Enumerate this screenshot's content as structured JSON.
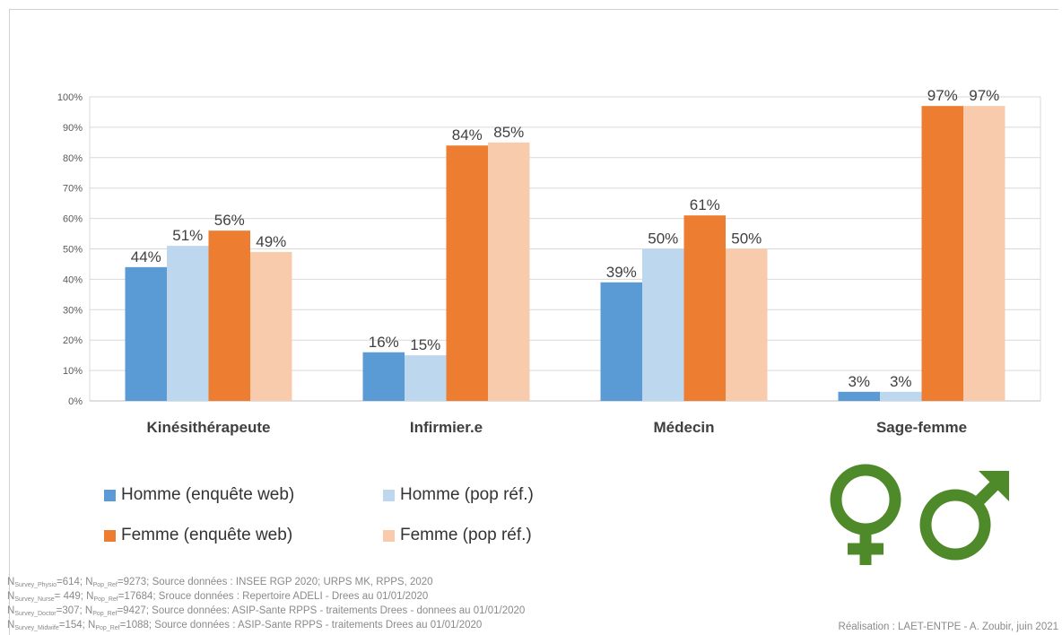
{
  "chart_data": {
    "type": "bar",
    "categories": [
      "Kinésithérapeute",
      "Infirmier.e",
      "Médecin",
      "Sage-femme"
    ],
    "series": [
      {
        "name": "Homme (enquête web)",
        "color": "#5B9BD5",
        "values": [
          44,
          16,
          39,
          3
        ],
        "labels": [
          "44%",
          "16%",
          "39%",
          "3%"
        ]
      },
      {
        "name": "Homme (pop réf.)",
        "color": "#BDD7EE",
        "values": [
          51,
          15,
          50,
          3
        ],
        "labels": [
          "51%",
          "15%",
          "50%",
          "3%"
        ]
      },
      {
        "name": "Femme (enquête web)",
        "color": "#ED7D31",
        "values": [
          56,
          84,
          61,
          97
        ],
        "labels": [
          "56%",
          "84%",
          "61%",
          "97%"
        ]
      },
      {
        "name": "Femme (pop réf.)",
        "color": "#F8CBAD",
        "values": [
          49,
          85,
          50,
          97
        ],
        "labels": [
          "49%",
          "85%",
          "50%",
          "97%"
        ]
      }
    ],
    "ylim": [
      0,
      100
    ],
    "yticks": [
      "0%",
      "10%",
      "20%",
      "30%",
      "40%",
      "50%",
      "60%",
      "70%",
      "80%",
      "90%",
      "100%"
    ],
    "grid": true,
    "legend_position": "bottom-left"
  },
  "symbols": {
    "female": "female-symbol",
    "male": "male-symbol",
    "color": "#4E8A2A"
  },
  "footnotes": [
    {
      "n1_sub": "Survey_Physio",
      "n1_val": "=614; N",
      "n2_sub": "Pop_Ref",
      "rest": "=9273; Source données : INSEE RGP 2020; URPS MK, RPPS, 2020"
    },
    {
      "n1_sub": "Survey_Nurse",
      "n1_val": "= 449; N",
      "n2_sub": "Pop_Ref",
      "rest": "=17684; Srouce données : Repertoire ADELI - Drees au 01/01/2020"
    },
    {
      "n1_sub": "Survey_Doctor",
      "n1_val": "=307; N",
      "n2_sub": "Pop_Ref",
      "rest": "=9427; Source données: ASIP-Sante RPPS - traitements Drees - donnees au 01/01/2020"
    },
    {
      "n1_sub": "Survey_Midwife",
      "n1_val": "=154; N",
      "n2_sub": "Pop_Ref",
      "rest": "=1088; Source données : ASIP-Sante RPPS - traitements Drees au 01/01/2020"
    }
  ],
  "credit": "Réalisation : LAET-ENTPE - A. Zoubir, juin 2021"
}
